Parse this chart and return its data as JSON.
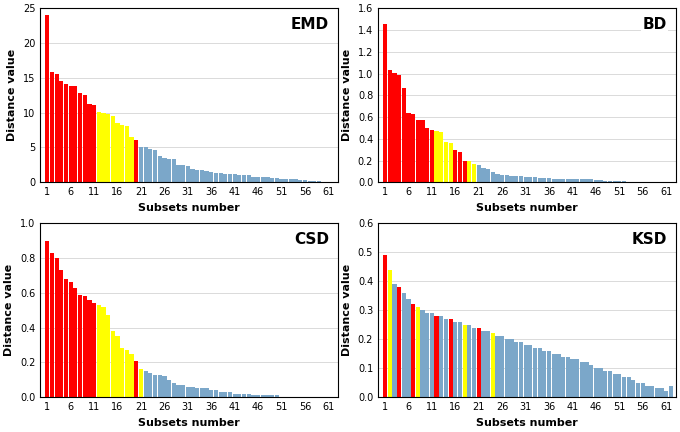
{
  "EMD": {
    "title": "EMD",
    "ylabel": "Distance value",
    "xlabel": "Subsets number",
    "ylim": [
      0,
      25
    ],
    "yticks": [
      0,
      5,
      10,
      15,
      20,
      25
    ],
    "values": [
      24.0,
      15.8,
      15.5,
      14.5,
      14.1,
      13.8,
      13.8,
      12.8,
      12.5,
      11.2,
      11.1,
      10.1,
      10.0,
      9.8,
      9.6,
      8.5,
      8.2,
      8.1,
      6.5,
      6.1,
      5.1,
      5.0,
      4.8,
      4.6,
      3.8,
      3.5,
      3.3,
      3.3,
      2.5,
      2.5,
      2.3,
      1.9,
      1.8,
      1.7,
      1.6,
      1.5,
      1.4,
      1.3,
      1.2,
      1.2,
      1.2,
      1.1,
      1.1,
      1.0,
      0.8,
      0.8,
      0.7,
      0.7,
      0.6,
      0.6,
      0.5,
      0.5,
      0.4,
      0.4,
      0.3,
      0.3,
      0.2,
      0.2,
      0.15,
      0.1,
      0.08,
      0.04
    ],
    "colors": [
      "red",
      "red",
      "red",
      "red",
      "red",
      "red",
      "red",
      "red",
      "red",
      "red",
      "red",
      "yellow",
      "yellow",
      "yellow",
      "yellow",
      "yellow",
      "yellow",
      "yellow",
      "yellow",
      "red",
      "blue",
      "blue",
      "blue",
      "blue",
      "blue",
      "blue",
      "blue",
      "blue",
      "blue",
      "blue",
      "blue",
      "blue",
      "blue",
      "blue",
      "blue",
      "blue",
      "blue",
      "blue",
      "blue",
      "blue",
      "blue",
      "blue",
      "blue",
      "blue",
      "blue",
      "blue",
      "blue",
      "blue",
      "blue",
      "blue",
      "blue",
      "blue",
      "blue",
      "blue",
      "blue",
      "blue",
      "blue",
      "blue",
      "blue",
      "blue",
      "blue",
      "blue"
    ]
  },
  "BD": {
    "title": "BD",
    "ylabel": "Distance value",
    "xlabel": "Subsets number",
    "ylim": [
      0,
      1.6
    ],
    "yticks": [
      0.0,
      0.2,
      0.4,
      0.6,
      0.8,
      1.0,
      1.2,
      1.4,
      1.6
    ],
    "values": [
      1.46,
      1.03,
      1.01,
      0.99,
      0.87,
      0.64,
      0.63,
      0.57,
      0.57,
      0.5,
      0.48,
      0.47,
      0.46,
      0.37,
      0.36,
      0.3,
      0.28,
      0.2,
      0.2,
      0.17,
      0.16,
      0.13,
      0.12,
      0.09,
      0.08,
      0.07,
      0.07,
      0.06,
      0.06,
      0.06,
      0.05,
      0.05,
      0.05,
      0.04,
      0.04,
      0.04,
      0.03,
      0.03,
      0.03,
      0.03,
      0.03,
      0.03,
      0.03,
      0.03,
      0.03,
      0.02,
      0.02,
      0.01,
      0.01,
      0.01,
      0.01,
      0.01,
      0.0,
      0.0,
      0.0,
      0.0,
      0.0,
      0.0,
      0.0,
      0.0,
      0.0,
      0.0
    ],
    "colors": [
      "red",
      "red",
      "red",
      "red",
      "red",
      "red",
      "red",
      "red",
      "red",
      "red",
      "red",
      "yellow",
      "yellow",
      "yellow",
      "yellow",
      "red",
      "red",
      "red",
      "yellow",
      "yellow",
      "blue",
      "blue",
      "blue",
      "blue",
      "blue",
      "blue",
      "blue",
      "blue",
      "blue",
      "blue",
      "blue",
      "blue",
      "blue",
      "blue",
      "blue",
      "blue",
      "blue",
      "blue",
      "blue",
      "blue",
      "blue",
      "blue",
      "blue",
      "blue",
      "blue",
      "blue",
      "blue",
      "blue",
      "blue",
      "blue",
      "blue",
      "blue",
      "blue",
      "blue",
      "blue",
      "blue",
      "blue",
      "blue",
      "blue",
      "blue",
      "blue",
      "blue"
    ]
  },
  "CSD": {
    "title": "CSD",
    "ylabel": "Distance value",
    "xlabel": "Subsets number",
    "ylim": [
      0,
      1.0
    ],
    "yticks": [
      0.0,
      0.2,
      0.4,
      0.6,
      0.8,
      1.0
    ],
    "values": [
      0.9,
      0.83,
      0.8,
      0.73,
      0.68,
      0.66,
      0.63,
      0.59,
      0.58,
      0.56,
      0.54,
      0.53,
      0.52,
      0.47,
      0.38,
      0.35,
      0.28,
      0.27,
      0.25,
      0.21,
      0.16,
      0.15,
      0.14,
      0.13,
      0.13,
      0.12,
      0.1,
      0.08,
      0.07,
      0.07,
      0.06,
      0.06,
      0.05,
      0.05,
      0.05,
      0.04,
      0.04,
      0.03,
      0.03,
      0.03,
      0.02,
      0.02,
      0.02,
      0.02,
      0.01,
      0.01,
      0.01,
      0.01,
      0.01,
      0.01,
      0.0,
      0.0,
      0.0,
      0.0,
      0.0,
      0.0,
      0.0,
      0.0,
      0.0,
      0.0,
      0.0,
      0.0
    ],
    "colors": [
      "red",
      "red",
      "red",
      "red",
      "red",
      "red",
      "red",
      "red",
      "red",
      "red",
      "red",
      "yellow",
      "yellow",
      "yellow",
      "yellow",
      "yellow",
      "yellow",
      "yellow",
      "yellow",
      "red",
      "yellow",
      "blue",
      "blue",
      "blue",
      "blue",
      "blue",
      "blue",
      "blue",
      "blue",
      "blue",
      "blue",
      "blue",
      "blue",
      "blue",
      "blue",
      "blue",
      "blue",
      "blue",
      "blue",
      "blue",
      "blue",
      "blue",
      "blue",
      "blue",
      "blue",
      "blue",
      "blue",
      "blue",
      "blue",
      "blue",
      "blue",
      "blue",
      "blue",
      "blue",
      "blue",
      "blue",
      "blue",
      "blue",
      "blue",
      "blue",
      "blue",
      "blue"
    ]
  },
  "KSD": {
    "title": "KSD",
    "ylabel": "Distance value",
    "xlabel": "Subsets number",
    "ylim": [
      0,
      0.6
    ],
    "yticks": [
      0.0,
      0.1,
      0.2,
      0.3,
      0.4,
      0.5,
      0.6
    ],
    "values": [
      0.49,
      0.44,
      0.39,
      0.38,
      0.36,
      0.34,
      0.32,
      0.31,
      0.3,
      0.29,
      0.29,
      0.28,
      0.28,
      0.27,
      0.27,
      0.26,
      0.26,
      0.25,
      0.25,
      0.24,
      0.24,
      0.23,
      0.23,
      0.22,
      0.21,
      0.21,
      0.2,
      0.2,
      0.19,
      0.19,
      0.18,
      0.18,
      0.17,
      0.17,
      0.16,
      0.16,
      0.15,
      0.15,
      0.14,
      0.14,
      0.13,
      0.13,
      0.12,
      0.12,
      0.11,
      0.1,
      0.1,
      0.09,
      0.09,
      0.08,
      0.08,
      0.07,
      0.07,
      0.06,
      0.05,
      0.05,
      0.04,
      0.04,
      0.03,
      0.03,
      0.02,
      0.04
    ],
    "colors": [
      "red",
      "yellow",
      "blue",
      "red",
      "blue",
      "blue",
      "red",
      "yellow",
      "blue",
      "blue",
      "blue",
      "red",
      "blue",
      "blue",
      "red",
      "blue",
      "blue",
      "yellow",
      "blue",
      "blue",
      "red",
      "blue",
      "blue",
      "yellow",
      "blue",
      "blue",
      "blue",
      "blue",
      "blue",
      "blue",
      "blue",
      "blue",
      "blue",
      "blue",
      "blue",
      "blue",
      "blue",
      "blue",
      "blue",
      "blue",
      "blue",
      "blue",
      "blue",
      "blue",
      "blue",
      "blue",
      "blue",
      "blue",
      "blue",
      "blue",
      "blue",
      "blue",
      "blue",
      "blue",
      "blue",
      "blue",
      "blue",
      "blue",
      "blue",
      "blue",
      "blue",
      "blue"
    ]
  },
  "color_map": {
    "red": "#FF0000",
    "yellow": "#FFFF00",
    "blue": "#7BA7C9"
  },
  "xticks": [
    1,
    6,
    11,
    16,
    21,
    26,
    31,
    36,
    41,
    46,
    51,
    56,
    61
  ],
  "n_bars": 62
}
